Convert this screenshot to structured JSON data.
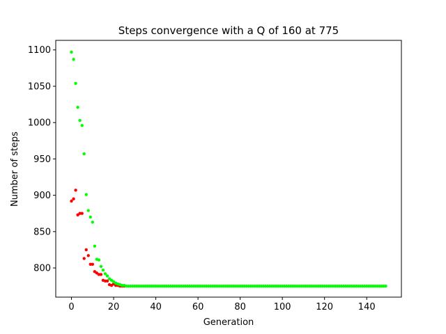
{
  "chart_data": {
    "type": "scatter",
    "title": "Steps convergence with a Q of 160 at 775",
    "xlabel": "Generation",
    "ylabel": "Number of steps",
    "xlim": [
      -7.45,
      156.45
    ],
    "ylim": [
      759.85,
      1113.15
    ],
    "xticks": [
      0,
      20,
      40,
      60,
      80,
      100,
      120,
      140
    ],
    "yticks": [
      800,
      850,
      900,
      950,
      1000,
      1050,
      1100
    ],
    "grid": false,
    "legend": "none",
    "series": [
      {
        "color": "#ff0000",
        "points": [
          [
            0,
            892
          ],
          [
            1,
            895
          ],
          [
            2,
            907
          ],
          [
            3,
            873
          ],
          [
            4,
            875
          ],
          [
            5,
            875
          ],
          [
            6,
            813
          ],
          [
            7,
            825
          ],
          [
            8,
            817
          ],
          [
            9,
            805
          ],
          [
            10,
            805
          ],
          [
            11,
            795
          ],
          [
            12,
            793
          ],
          [
            13,
            791
          ],
          [
            14,
            791
          ],
          [
            15,
            783
          ],
          [
            16,
            782
          ],
          [
            17,
            782
          ],
          [
            18,
            777
          ],
          [
            19,
            776
          ],
          [
            20,
            778
          ],
          [
            21,
            776
          ],
          [
            22,
            776
          ],
          [
            23,
            775
          ],
          [
            24,
            775
          ],
          [
            25,
            775
          ]
        ]
      },
      {
        "color": "#00ff00",
        "points": [
          [
            0,
            1097
          ],
          [
            1,
            1087
          ],
          [
            2,
            1054
          ],
          [
            3,
            1021
          ],
          [
            4,
            1003
          ],
          [
            5,
            996
          ],
          [
            6,
            957
          ],
          [
            7,
            901
          ],
          [
            8,
            879
          ],
          [
            9,
            870
          ],
          [
            10,
            863
          ],
          [
            11,
            830
          ],
          [
            12,
            812
          ],
          [
            13,
            811
          ],
          [
            14,
            802
          ],
          [
            15,
            797
          ],
          [
            16,
            792
          ],
          [
            17,
            789
          ],
          [
            18,
            785
          ],
          [
            19,
            783
          ],
          [
            20,
            781
          ],
          [
            21,
            779
          ],
          [
            22,
            778
          ],
          [
            23,
            777
          ],
          [
            24,
            776
          ],
          [
            25,
            776
          ],
          [
            26,
            775
          ]
        ],
        "plateau": {
          "from": 27,
          "to": 149,
          "value": 775
        }
      }
    ]
  }
}
